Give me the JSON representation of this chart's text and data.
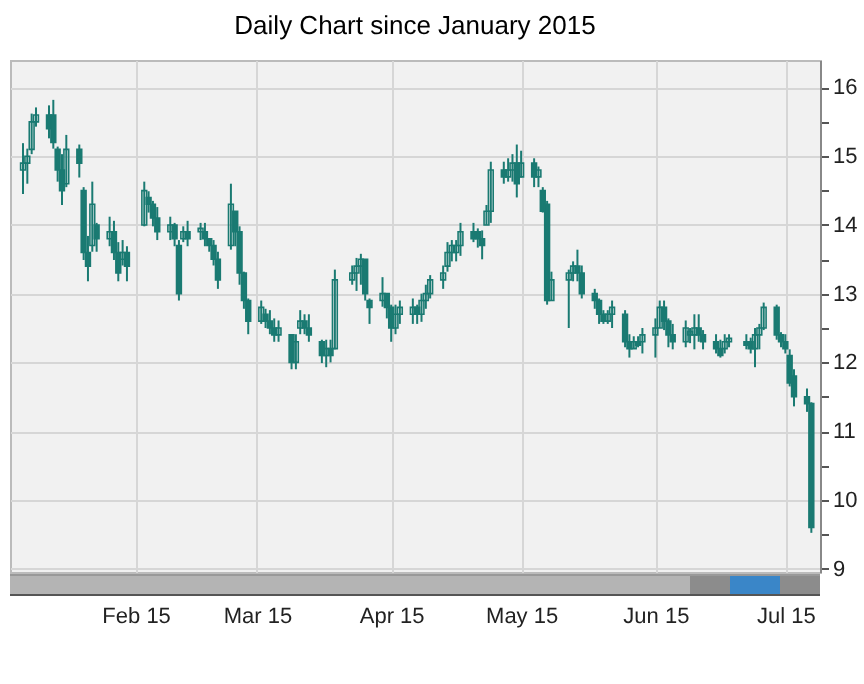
{
  "chart_data": {
    "type": "candlestick",
    "title": "Daily Chart since January 2015",
    "color": "#1a7a72",
    "grid": true,
    "x": [
      "2015-01-20",
      "2015-01-21",
      "2015-01-22",
      "2015-01-23",
      "2015-01-26",
      "2015-01-27",
      "2015-01-28",
      "2015-01-29",
      "2015-01-30",
      "2015-02-02",
      "2015-02-03",
      "2015-02-04",
      "2015-02-05",
      "2015-02-06",
      "2015-02-09",
      "2015-02-10",
      "2015-02-11",
      "2015-02-12",
      "2015-02-13",
      "2015-02-17",
      "2015-02-18",
      "2015-02-19",
      "2015-02-20",
      "2015-02-23",
      "2015-02-24",
      "2015-02-25",
      "2015-02-26",
      "2015-02-27",
      "2015-03-02",
      "2015-03-03",
      "2015-03-04",
      "2015-03-05",
      "2015-03-06",
      "2015-03-09",
      "2015-03-10",
      "2015-03-11",
      "2015-03-12",
      "2015-03-13",
      "2015-03-16",
      "2015-03-17",
      "2015-03-18",
      "2015-03-19",
      "2015-03-20",
      "2015-03-23",
      "2015-03-24",
      "2015-03-25",
      "2015-03-26",
      "2015-03-27",
      "2015-03-30",
      "2015-03-31",
      "2015-04-01",
      "2015-04-02",
      "2015-04-06",
      "2015-04-07",
      "2015-04-08",
      "2015-04-09",
      "2015-04-10",
      "2015-04-13",
      "2015-04-14",
      "2015-04-15",
      "2015-04-16",
      "2015-04-17",
      "2015-04-20",
      "2015-04-21",
      "2015-04-22",
      "2015-04-23",
      "2015-04-24",
      "2015-04-27",
      "2015-04-28",
      "2015-04-29",
      "2015-04-30",
      "2015-05-01",
      "2015-05-04",
      "2015-05-05",
      "2015-05-06",
      "2015-05-07",
      "2015-05-08",
      "2015-05-11",
      "2015-05-12",
      "2015-05-13",
      "2015-05-14",
      "2015-05-15",
      "2015-05-18",
      "2015-05-19",
      "2015-05-20",
      "2015-05-21",
      "2015-05-22",
      "2015-05-26",
      "2015-05-27",
      "2015-05-28",
      "2015-05-29",
      "2015-06-01",
      "2015-06-02",
      "2015-06-03",
      "2015-06-04",
      "2015-06-05",
      "2015-06-08",
      "2015-06-09",
      "2015-06-10",
      "2015-06-11",
      "2015-06-12",
      "2015-06-15",
      "2015-06-16",
      "2015-06-17",
      "2015-06-18",
      "2015-06-19",
      "2015-06-22",
      "2015-06-23",
      "2015-06-24",
      "2015-06-25",
      "2015-06-26",
      "2015-06-29",
      "2015-06-30",
      "2015-07-01",
      "2015-07-02",
      "2015-07-06",
      "2015-07-07",
      "2015-07-08",
      "2015-07-09",
      "2015-07-10",
      "2015-07-13",
      "2015-07-14",
      "2015-07-15",
      "2015-07-16",
      "2015-07-17",
      "2015-07-20",
      "2015-07-21"
    ],
    "ohlc": [
      [
        14.8,
        15.19,
        14.45,
        14.9
      ],
      [
        14.9,
        15.11,
        14.6,
        15.0
      ],
      [
        15.1,
        15.62,
        15.03,
        15.5
      ],
      [
        15.5,
        15.71,
        15.43,
        15.6
      ],
      [
        15.6,
        15.74,
        15.26,
        15.4
      ],
      [
        15.6,
        15.82,
        15.11,
        15.2
      ],
      [
        15.1,
        15.14,
        14.63,
        14.8
      ],
      [
        14.8,
        15.03,
        14.29,
        14.5
      ],
      [
        14.6,
        15.31,
        14.55,
        15.1
      ],
      [
        15.1,
        15.17,
        14.69,
        14.9
      ],
      [
        14.5,
        14.55,
        13.49,
        13.6
      ],
      [
        13.6,
        13.84,
        13.18,
        13.4
      ],
      [
        13.7,
        14.63,
        13.61,
        14.3
      ],
      [
        14.0,
        14.03,
        13.61,
        13.8
      ],
      [
        13.8,
        14.12,
        13.69,
        13.9
      ],
      [
        13.9,
        14.06,
        13.49,
        13.6
      ],
      [
        13.6,
        13.75,
        13.18,
        13.3
      ],
      [
        13.5,
        13.78,
        13.41,
        13.6
      ],
      [
        13.6,
        13.69,
        13.18,
        13.4
      ],
      [
        14.0,
        14.63,
        13.98,
        14.5
      ],
      [
        14.4,
        14.49,
        14.18,
        14.3
      ],
      [
        14.3,
        14.35,
        13.98,
        14.1
      ],
      [
        14.1,
        14.26,
        13.78,
        13.9
      ],
      [
        13.9,
        14.12,
        13.78,
        14.0
      ],
      [
        14.0,
        14.03,
        13.69,
        13.8
      ],
      [
        13.7,
        13.78,
        12.9,
        13.0
      ],
      [
        13.8,
        13.98,
        13.75,
        13.9
      ],
      [
        13.9,
        14.06,
        13.69,
        13.8
      ],
      [
        13.9,
        14.03,
        13.78,
        13.95
      ],
      [
        13.9,
        14.03,
        13.69,
        13.8
      ],
      [
        13.8,
        13.81,
        13.61,
        13.7
      ],
      [
        13.7,
        13.78,
        13.41,
        13.5
      ],
      [
        13.5,
        13.61,
        13.07,
        13.2
      ],
      [
        13.7,
        14.6,
        13.64,
        14.3
      ],
      [
        14.2,
        14.2,
        13.69,
        13.9
      ],
      [
        13.9,
        13.98,
        13.13,
        13.3
      ],
      [
        13.3,
        13.32,
        12.78,
        12.9
      ],
      [
        12.9,
        12.93,
        12.41,
        12.6
      ],
      [
        12.6,
        12.9,
        12.56,
        12.8
      ],
      [
        12.7,
        12.78,
        12.5,
        12.6
      ],
      [
        12.6,
        12.76,
        12.41,
        12.5
      ],
      [
        12.5,
        12.64,
        12.3,
        12.4
      ],
      [
        12.4,
        12.61,
        12.3,
        12.5
      ],
      [
        12.4,
        12.41,
        11.9,
        12.0
      ],
      [
        12.0,
        12.41,
        11.9,
        12.3
      ],
      [
        12.5,
        12.76,
        12.41,
        12.6
      ],
      [
        12.6,
        12.7,
        12.41,
        12.5
      ],
      [
        12.5,
        12.7,
        12.3,
        12.4
      ],
      [
        12.3,
        12.33,
        11.99,
        12.1
      ],
      [
        12.1,
        12.33,
        11.93,
        12.2
      ],
      [
        12.2,
        12.33,
        12.0,
        12.1
      ],
      [
        12.2,
        13.35,
        12.19,
        13.2
      ],
      [
        13.2,
        13.41,
        13.13,
        13.3
      ],
      [
        13.3,
        13.52,
        13.04,
        13.4
      ],
      [
        13.4,
        13.58,
        13.13,
        13.5
      ],
      [
        13.5,
        13.5,
        12.9,
        13.0
      ],
      [
        12.9,
        12.93,
        12.56,
        12.8
      ],
      [
        12.9,
        13.24,
        12.81,
        13.0
      ],
      [
        13.0,
        13.0,
        12.64,
        12.8
      ],
      [
        12.8,
        12.84,
        12.3,
        12.5
      ],
      [
        12.5,
        12.84,
        12.41,
        12.7
      ],
      [
        12.7,
        12.9,
        12.56,
        12.8
      ],
      [
        12.7,
        12.93,
        12.56,
        12.8
      ],
      [
        12.8,
        12.84,
        12.56,
        12.7
      ],
      [
        12.7,
        13.0,
        12.59,
        12.9
      ],
      [
        12.9,
        13.13,
        12.78,
        13.0
      ],
      [
        13.0,
        13.27,
        12.93,
        13.2
      ],
      [
        13.2,
        13.41,
        13.07,
        13.3
      ],
      [
        13.4,
        13.75,
        13.32,
        13.6
      ],
      [
        13.6,
        13.78,
        13.47,
        13.7
      ],
      [
        13.6,
        13.78,
        13.47,
        13.7
      ],
      [
        13.7,
        14.03,
        13.55,
        13.9
      ],
      [
        13.9,
        14.03,
        13.75,
        13.8
      ],
      [
        13.9,
        13.95,
        13.67,
        13.8
      ],
      [
        13.8,
        13.92,
        13.5,
        13.7
      ],
      [
        14.0,
        14.29,
        14.0,
        14.2
      ],
      [
        14.2,
        14.92,
        14.03,
        14.8
      ],
      [
        14.8,
        14.92,
        14.6,
        14.7
      ],
      [
        14.7,
        14.97,
        14.63,
        14.8
      ],
      [
        14.8,
        15.03,
        14.63,
        14.9
      ],
      [
        14.9,
        15.17,
        14.4,
        14.6
      ],
      [
        14.7,
        15.08,
        14.69,
        14.9
      ],
      [
        14.9,
        14.97,
        14.55,
        14.7
      ],
      [
        14.7,
        14.85,
        14.55,
        14.8
      ],
      [
        14.5,
        14.55,
        14.18,
        14.2
      ],
      [
        14.3,
        14.35,
        12.84,
        12.9
      ],
      [
        12.9,
        13.32,
        12.9,
        13.2
      ],
      [
        13.2,
        13.35,
        12.5,
        13.3
      ],
      [
        13.3,
        13.47,
        13.18,
        13.4
      ],
      [
        13.4,
        13.64,
        13.18,
        13.3
      ],
      [
        13.3,
        13.41,
        12.93,
        13.0
      ],
      [
        13.0,
        13.07,
        12.78,
        12.9
      ],
      [
        12.9,
        12.93,
        12.56,
        12.7
      ],
      [
        12.7,
        12.76,
        12.56,
        12.6
      ],
      [
        12.6,
        12.76,
        12.56,
        12.7
      ],
      [
        12.7,
        12.9,
        12.5,
        12.8
      ],
      [
        12.7,
        12.76,
        12.22,
        12.3
      ],
      [
        12.3,
        12.41,
        12.07,
        12.2
      ],
      [
        12.2,
        12.38,
        12.2,
        12.3
      ],
      [
        12.3,
        12.38,
        12.22,
        12.25
      ],
      [
        12.3,
        12.5,
        12.13,
        12.4
      ],
      [
        12.4,
        12.64,
        12.07,
        12.5
      ],
      [
        12.5,
        12.9,
        12.5,
        12.8
      ],
      [
        12.8,
        12.9,
        12.47,
        12.6
      ],
      [
        12.6,
        12.64,
        12.22,
        12.4
      ],
      [
        12.4,
        12.56,
        12.19,
        12.3
      ],
      [
        12.3,
        12.61,
        12.22,
        12.5
      ],
      [
        12.4,
        12.5,
        12.28,
        12.45
      ],
      [
        12.4,
        12.7,
        12.19,
        12.5
      ],
      [
        12.5,
        12.7,
        12.3,
        12.4
      ],
      [
        12.4,
        12.47,
        12.19,
        12.3
      ],
      [
        12.3,
        12.41,
        12.13,
        12.2
      ],
      [
        12.2,
        12.33,
        12.07,
        12.1
      ],
      [
        12.2,
        12.41,
        12.13,
        12.3
      ],
      [
        12.3,
        12.41,
        12.22,
        12.35
      ],
      [
        12.3,
        12.41,
        12.19,
        12.25
      ],
      [
        12.3,
        12.36,
        12.13,
        12.2
      ],
      [
        12.2,
        12.5,
        11.93,
        12.4
      ],
      [
        12.4,
        12.56,
        12.19,
        12.5
      ],
      [
        12.5,
        12.87,
        12.47,
        12.8
      ],
      [
        12.8,
        12.84,
        12.33,
        12.4
      ],
      [
        12.4,
        12.44,
        12.22,
        12.3
      ],
      [
        12.3,
        12.41,
        12.13,
        12.2
      ],
      [
        12.1,
        12.19,
        11.65,
        11.7
      ],
      [
        11.8,
        11.9,
        11.36,
        11.5
      ],
      [
        11.5,
        11.62,
        11.28,
        11.4
      ],
      [
        11.4,
        11.42,
        9.52,
        9.6
      ]
    ],
    "xlim": [
      "2015-01-17",
      "2015-07-23"
    ],
    "xticks": [
      {
        "value": "2015-02-15",
        "label": "Feb 15"
      },
      {
        "value": "2015-03-15",
        "label": "Mar 15"
      },
      {
        "value": "2015-04-15",
        "label": "Apr 15"
      },
      {
        "value": "2015-05-15",
        "label": "May 15"
      },
      {
        "value": "2015-06-15",
        "label": "Jun 15"
      },
      {
        "value": "2015-07-15",
        "label": "Jul 15"
      }
    ],
    "ylim": [
      8.95,
      16.4
    ],
    "yticks": [
      9,
      {
        "value": 9.5,
        "label": null
      },
      10,
      {
        "value": 10.5,
        "label": null
      },
      11,
      {
        "value": 11.5,
        "label": null
      },
      12,
      {
        "value": 12.5,
        "label": null
      },
      13,
      {
        "value": 13.5,
        "label": null
      },
      14,
      {
        "value": 14.5,
        "label": null
      },
      15,
      {
        "value": 15.5,
        "label": null
      },
      16
    ]
  }
}
